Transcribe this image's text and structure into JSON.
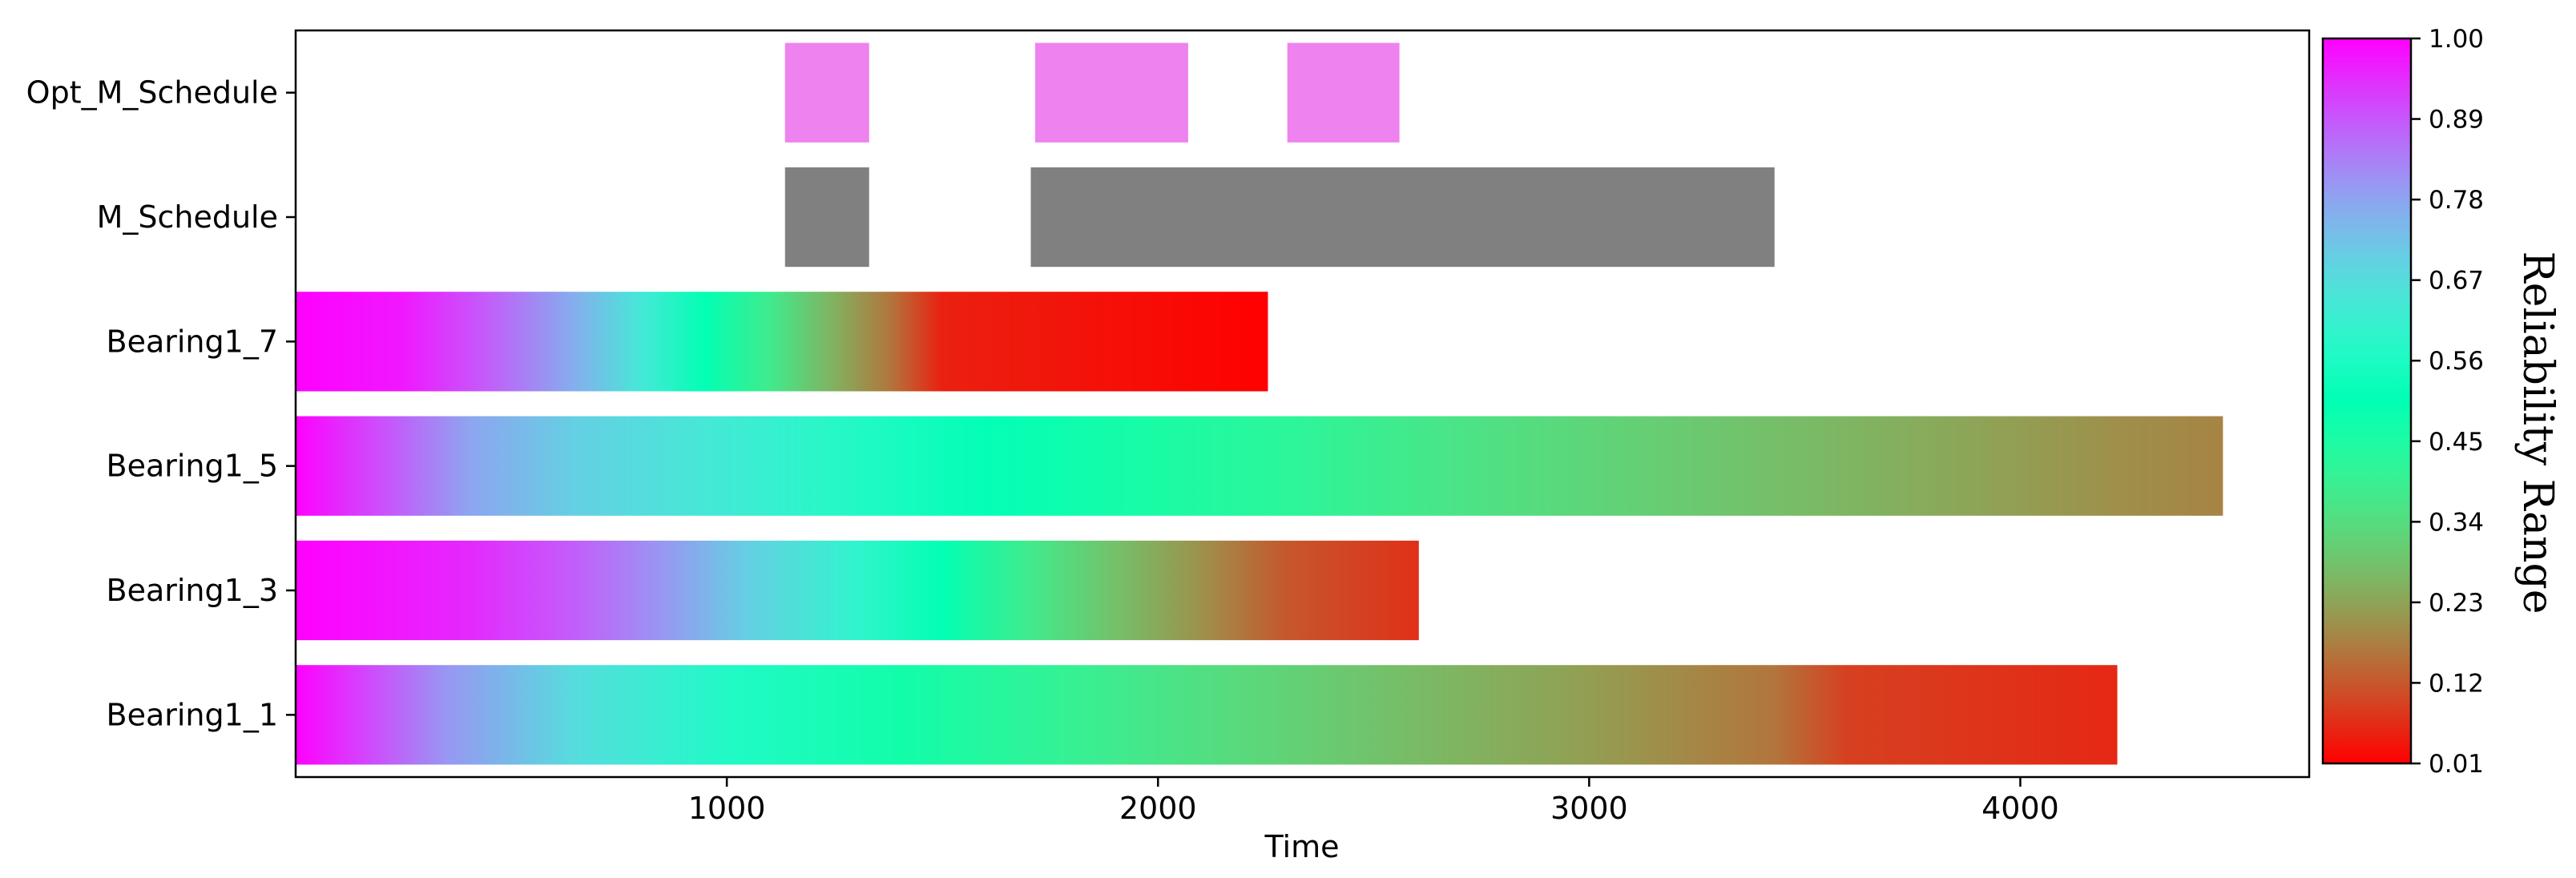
{
  "chart_data": {
    "type": "gantt",
    "xlabel": "Time",
    "xlim": [
      0,
      4670
    ],
    "xticks": [
      1000,
      2000,
      3000,
      4000
    ],
    "grid": false,
    "rows": [
      {
        "label": "Opt_M_Schedule",
        "kind": "intervals",
        "color": "#ee82ee",
        "intervals": [
          [
            1135,
            1330
          ],
          [
            1715,
            2070
          ],
          [
            2300,
            2560
          ]
        ]
      },
      {
        "label": "M_Schedule",
        "kind": "intervals",
        "color": "#808080",
        "intervals": [
          [
            1135,
            1330
          ],
          [
            1705,
            3430
          ]
        ]
      },
      {
        "label": "Bearing1_7",
        "kind": "reliability",
        "start": 0,
        "end": 2255,
        "stops": [
          [
            0,
            1.0
          ],
          [
            250,
            0.97
          ],
          [
            450,
            0.88
          ],
          [
            650,
            0.76
          ],
          [
            800,
            0.64
          ],
          [
            950,
            0.5
          ],
          [
            1100,
            0.38
          ],
          [
            1250,
            0.25
          ],
          [
            1380,
            0.16
          ],
          [
            1500,
            0.05
          ],
          [
            2255,
            0.01
          ]
        ]
      },
      {
        "label": "Bearing1_5",
        "kind": "reliability",
        "start": 0,
        "end": 4470,
        "stops": [
          [
            0,
            1.0
          ],
          [
            200,
            0.9
          ],
          [
            400,
            0.78
          ],
          [
            650,
            0.7
          ],
          [
            950,
            0.64
          ],
          [
            1250,
            0.58
          ],
          [
            1600,
            0.51
          ],
          [
            1950,
            0.46
          ],
          [
            2300,
            0.42
          ],
          [
            2700,
            0.36
          ],
          [
            3100,
            0.31
          ],
          [
            3500,
            0.27
          ],
          [
            3900,
            0.23
          ],
          [
            4200,
            0.2
          ],
          [
            4470,
            0.18
          ]
        ]
      },
      {
        "label": "Bearing1_3",
        "kind": "reliability",
        "start": 0,
        "end": 2605,
        "stops": [
          [
            0,
            1.0
          ],
          [
            400,
            0.95
          ],
          [
            650,
            0.88
          ],
          [
            850,
            0.8
          ],
          [
            1050,
            0.7
          ],
          [
            1300,
            0.6
          ],
          [
            1500,
            0.5
          ],
          [
            1700,
            0.38
          ],
          [
            1900,
            0.28
          ],
          [
            2100,
            0.2
          ],
          [
            2300,
            0.12
          ],
          [
            2605,
            0.07
          ]
        ]
      },
      {
        "label": "Bearing1_1",
        "kind": "reliability",
        "start": 0,
        "end": 4225,
        "stops": [
          [
            0,
            1.0
          ],
          [
            150,
            0.92
          ],
          [
            350,
            0.8
          ],
          [
            650,
            0.67
          ],
          [
            1000,
            0.57
          ],
          [
            1400,
            0.47
          ],
          [
            1800,
            0.4
          ],
          [
            2200,
            0.33
          ],
          [
            2600,
            0.27
          ],
          [
            3000,
            0.22
          ],
          [
            3430,
            0.16
          ],
          [
            3600,
            0.09
          ],
          [
            4225,
            0.06
          ]
        ]
      }
    ],
    "colorbar": {
      "label": "Reliability Range",
      "colormap": "rainbow",
      "range": [
        0.01,
        1.0
      ],
      "ticks": [
        "1.00",
        "0.89",
        "0.78",
        "0.67",
        "0.56",
        "0.45",
        "0.34",
        "0.23",
        "0.12",
        "0.01"
      ]
    }
  }
}
